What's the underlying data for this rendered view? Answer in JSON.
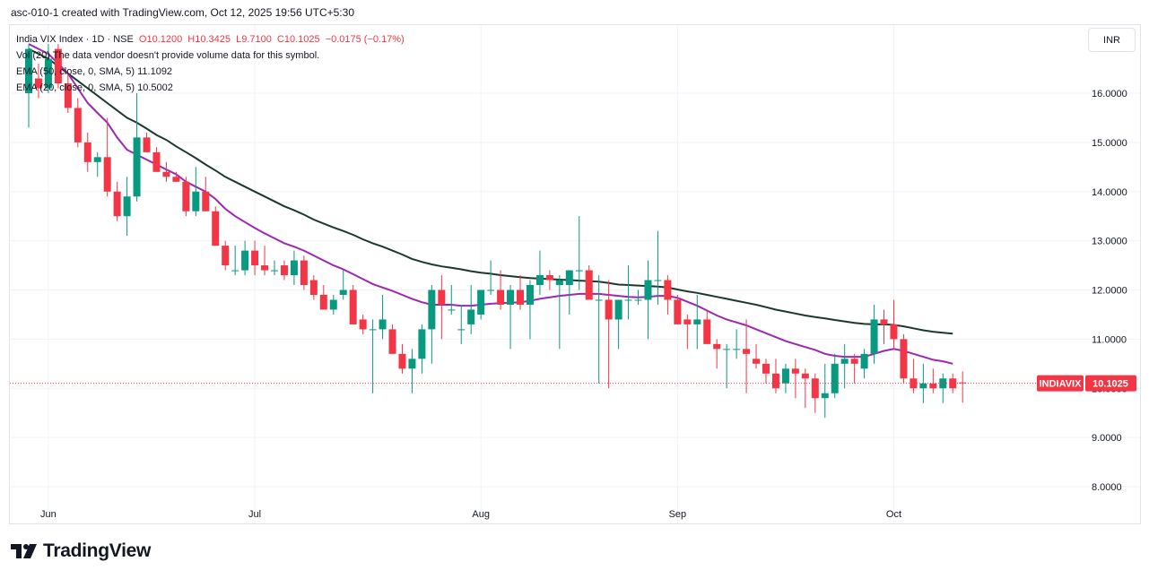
{
  "header": {
    "title": "asc-010-1 created with TradingView.com, Oct 12, 2025 19:56 UTC+5:30"
  },
  "legend": {
    "symbol": "India VIX Index · 1D · NSE",
    "open": "O10.1200",
    "high": "H10.3425",
    "low": "L9.7100",
    "close": "C10.1025",
    "change": "−0.0175 (−0.17%)",
    "vol": "Vol (20) The data vendor doesn't provide volume data for this symbol.",
    "ema50": "EMA (50, close, 0, SMA, 5)  11.1092",
    "ema20": "EMA (20, close, 0, SMA, 5)  10.5002"
  },
  "currency": "INR",
  "brand": {
    "name": "TradingView"
  },
  "colors": {
    "up": "#089981",
    "down": "#f23645",
    "ema50": "#1b3a2c",
    "ema20": "#9c27b0",
    "tag": "#f23645"
  },
  "chart_data": {
    "type": "candlestick",
    "y_ticks": [
      "16.0000",
      "15.0000",
      "14.0000",
      "13.0000",
      "12.0000",
      "11.0000",
      "10.0000",
      "9.0000",
      "8.0000"
    ],
    "ylim": [
      7.5,
      16.5
    ],
    "x_labels": [
      {
        "label": "Jun",
        "index": 2
      },
      {
        "label": "Jul",
        "index": 23
      },
      {
        "label": "Aug",
        "index": 46
      },
      {
        "label": "Sep",
        "index": 66
      },
      {
        "label": "Oct",
        "index": 88
      }
    ],
    "last_price": {
      "symbol": "INDIAVIX",
      "value": "10.1025"
    },
    "candles": [
      {
        "o": 16.0,
        "h": 17.0,
        "l": 15.3,
        "c": 16.9
      },
      {
        "o": 16.3,
        "h": 16.6,
        "l": 15.9,
        "c": 16.1
      },
      {
        "o": 16.1,
        "h": 17.0,
        "l": 16.0,
        "c": 16.7
      },
      {
        "o": 16.9,
        "h": 17.0,
        "l": 16.1,
        "c": 16.2
      },
      {
        "o": 16.2,
        "h": 16.4,
        "l": 15.6,
        "c": 15.7
      },
      {
        "o": 15.7,
        "h": 15.9,
        "l": 14.9,
        "c": 15.0
      },
      {
        "o": 15.0,
        "h": 15.2,
        "l": 14.4,
        "c": 14.6
      },
      {
        "o": 14.6,
        "h": 14.8,
        "l": 14.3,
        "c": 14.7
      },
      {
        "o": 14.7,
        "h": 15.5,
        "l": 13.9,
        "c": 14.0
      },
      {
        "o": 14.0,
        "h": 14.2,
        "l": 13.4,
        "c": 13.5
      },
      {
        "o": 13.5,
        "h": 14.3,
        "l": 13.1,
        "c": 13.9
      },
      {
        "o": 13.9,
        "h": 16.0,
        "l": 13.8,
        "c": 15.1
      },
      {
        "o": 15.1,
        "h": 15.2,
        "l": 14.8,
        "c": 14.8
      },
      {
        "o": 14.8,
        "h": 14.9,
        "l": 14.4,
        "c": 14.4
      },
      {
        "o": 14.4,
        "h": 14.6,
        "l": 14.2,
        "c": 14.3
      },
      {
        "o": 14.3,
        "h": 14.4,
        "l": 14.2,
        "c": 14.2
      },
      {
        "o": 14.2,
        "h": 14.3,
        "l": 13.5,
        "c": 13.6
      },
      {
        "o": 13.6,
        "h": 14.5,
        "l": 13.5,
        "c": 14.0
      },
      {
        "o": 14.0,
        "h": 14.3,
        "l": 13.6,
        "c": 13.6
      },
      {
        "o": 13.6,
        "h": 13.7,
        "l": 12.9,
        "c": 12.9
      },
      {
        "o": 12.9,
        "h": 13.0,
        "l": 12.4,
        "c": 12.5
      },
      {
        "o": 12.4,
        "h": 12.9,
        "l": 12.3,
        "c": 12.4
      },
      {
        "o": 12.4,
        "h": 13.0,
        "l": 12.3,
        "c": 12.8
      },
      {
        "o": 12.8,
        "h": 13.0,
        "l": 12.3,
        "c": 12.5
      },
      {
        "o": 12.5,
        "h": 12.9,
        "l": 12.3,
        "c": 12.4
      },
      {
        "o": 12.4,
        "h": 12.6,
        "l": 12.3,
        "c": 12.4
      },
      {
        "o": 12.5,
        "h": 12.6,
        "l": 12.2,
        "c": 12.3
      },
      {
        "o": 12.3,
        "h": 12.8,
        "l": 12.1,
        "c": 12.6
      },
      {
        "o": 12.6,
        "h": 12.7,
        "l": 12.0,
        "c": 12.1
      },
      {
        "o": 12.2,
        "h": 12.3,
        "l": 11.8,
        "c": 11.9
      },
      {
        "o": 11.9,
        "h": 12.1,
        "l": 11.6,
        "c": 11.6
      },
      {
        "o": 11.6,
        "h": 11.9,
        "l": 11.5,
        "c": 11.8
      },
      {
        "o": 11.9,
        "h": 12.4,
        "l": 11.8,
        "c": 12.0
      },
      {
        "o": 12.0,
        "h": 12.1,
        "l": 11.3,
        "c": 11.3
      },
      {
        "o": 11.4,
        "h": 11.5,
        "l": 11.1,
        "c": 11.2
      },
      {
        "o": 11.2,
        "h": 11.4,
        "l": 9.9,
        "c": 11.2
      },
      {
        "o": 11.2,
        "h": 11.9,
        "l": 11.0,
        "c": 11.4
      },
      {
        "o": 11.2,
        "h": 11.3,
        "l": 10.7,
        "c": 10.7
      },
      {
        "o": 10.7,
        "h": 10.9,
        "l": 10.3,
        "c": 10.4
      },
      {
        "o": 10.4,
        "h": 10.8,
        "l": 9.9,
        "c": 10.6
      },
      {
        "o": 10.6,
        "h": 11.3,
        "l": 10.3,
        "c": 11.2
      },
      {
        "o": 11.2,
        "h": 12.1,
        "l": 10.5,
        "c": 12.0
      },
      {
        "o": 12.0,
        "h": 12.3,
        "l": 11.0,
        "c": 11.7
      },
      {
        "o": 11.6,
        "h": 12.1,
        "l": 11.5,
        "c": 11.6
      },
      {
        "o": 11.2,
        "h": 11.7,
        "l": 10.9,
        "c": 11.2
      },
      {
        "o": 11.3,
        "h": 12.1,
        "l": 11.1,
        "c": 11.6
      },
      {
        "o": 11.5,
        "h": 12.0,
        "l": 11.4,
        "c": 12.0
      },
      {
        "o": 12.0,
        "h": 12.6,
        "l": 11.9,
        "c": 12.0
      },
      {
        "o": 12.0,
        "h": 12.4,
        "l": 11.6,
        "c": 11.7
      },
      {
        "o": 11.7,
        "h": 12.1,
        "l": 10.8,
        "c": 12.0
      },
      {
        "o": 12.0,
        "h": 12.3,
        "l": 11.6,
        "c": 11.7
      },
      {
        "o": 11.7,
        "h": 12.2,
        "l": 11.0,
        "c": 12.1
      },
      {
        "o": 12.1,
        "h": 12.8,
        "l": 11.9,
        "c": 12.3
      },
      {
        "o": 12.3,
        "h": 12.4,
        "l": 12.0,
        "c": 12.2
      },
      {
        "o": 12.1,
        "h": 12.3,
        "l": 10.8,
        "c": 12.2
      },
      {
        "o": 12.1,
        "h": 12.4,
        "l": 11.5,
        "c": 12.4
      },
      {
        "o": 12.4,
        "h": 13.5,
        "l": 12.0,
        "c": 12.4
      },
      {
        "o": 12.4,
        "h": 12.5,
        "l": 11.8,
        "c": 11.8
      },
      {
        "o": 11.8,
        "h": 12.3,
        "l": 10.1,
        "c": 11.8
      },
      {
        "o": 11.8,
        "h": 12.2,
        "l": 10.0,
        "c": 11.4
      },
      {
        "o": 11.4,
        "h": 11.8,
        "l": 10.8,
        "c": 11.8
      },
      {
        "o": 11.8,
        "h": 12.5,
        "l": 11.4,
        "c": 11.8
      },
      {
        "o": 11.8,
        "h": 12.0,
        "l": 11.7,
        "c": 11.8
      },
      {
        "o": 11.8,
        "h": 12.6,
        "l": 11.0,
        "c": 12.2
      },
      {
        "o": 12.2,
        "h": 13.2,
        "l": 11.7,
        "c": 12.2
      },
      {
        "o": 12.2,
        "h": 12.3,
        "l": 11.5,
        "c": 11.8
      },
      {
        "o": 11.8,
        "h": 11.9,
        "l": 11.3,
        "c": 11.3
      },
      {
        "o": 11.4,
        "h": 11.5,
        "l": 10.8,
        "c": 11.3
      },
      {
        "o": 11.3,
        "h": 11.9,
        "l": 10.8,
        "c": 11.4
      },
      {
        "o": 11.4,
        "h": 11.6,
        "l": 10.9,
        "c": 10.9
      },
      {
        "o": 10.9,
        "h": 11.0,
        "l": 10.4,
        "c": 10.8
      },
      {
        "o": 10.8,
        "h": 10.9,
        "l": 10.0,
        "c": 10.8
      },
      {
        "o": 10.8,
        "h": 11.2,
        "l": 10.6,
        "c": 10.8
      },
      {
        "o": 10.8,
        "h": 11.4,
        "l": 9.9,
        "c": 10.7
      },
      {
        "o": 10.6,
        "h": 10.9,
        "l": 10.4,
        "c": 10.5
      },
      {
        "o": 10.5,
        "h": 10.6,
        "l": 10.1,
        "c": 10.3
      },
      {
        "o": 10.3,
        "h": 10.6,
        "l": 9.9,
        "c": 10.0
      },
      {
        "o": 10.1,
        "h": 10.5,
        "l": 9.9,
        "c": 10.4
      },
      {
        "o": 10.4,
        "h": 10.6,
        "l": 9.8,
        "c": 10.3
      },
      {
        "o": 10.3,
        "h": 10.4,
        "l": 9.6,
        "c": 10.2
      },
      {
        "o": 10.2,
        "h": 10.3,
        "l": 9.5,
        "c": 9.8
      },
      {
        "o": 9.8,
        "h": 10.5,
        "l": 9.4,
        "c": 9.9
      },
      {
        "o": 9.9,
        "h": 10.7,
        "l": 9.8,
        "c": 10.5
      },
      {
        "o": 10.5,
        "h": 10.9,
        "l": 10.0,
        "c": 10.6
      },
      {
        "o": 10.6,
        "h": 10.7,
        "l": 10.1,
        "c": 10.5
      },
      {
        "o": 10.4,
        "h": 10.8,
        "l": 10.2,
        "c": 10.7
      },
      {
        "o": 10.7,
        "h": 11.7,
        "l": 10.5,
        "c": 11.4
      },
      {
        "o": 11.4,
        "h": 11.6,
        "l": 10.9,
        "c": 11.3
      },
      {
        "o": 11.3,
        "h": 11.8,
        "l": 10.8,
        "c": 11.0
      },
      {
        "o": 11.0,
        "h": 11.1,
        "l": 10.1,
        "c": 10.2
      },
      {
        "o": 10.2,
        "h": 10.6,
        "l": 9.9,
        "c": 10.0
      },
      {
        "o": 10.0,
        "h": 10.5,
        "l": 9.7,
        "c": 10.1
      },
      {
        "o": 10.1,
        "h": 10.4,
        "l": 9.9,
        "c": 10.0
      },
      {
        "o": 10.0,
        "h": 10.3,
        "l": 9.7,
        "c": 10.2
      },
      {
        "o": 10.2,
        "h": 10.3,
        "l": 9.9,
        "c": 10.0
      },
      {
        "o": 10.12,
        "h": 10.3425,
        "l": 9.71,
        "c": 10.1025
      }
    ],
    "ema50": [
      16.9,
      16.8,
      16.7,
      16.55,
      16.4,
      16.25,
      16.1,
      15.95,
      15.8,
      15.65,
      15.5,
      15.4,
      15.28,
      15.15,
      15.05,
      14.92,
      14.8,
      14.68,
      14.55,
      14.43,
      14.3,
      14.2,
      14.1,
      14.0,
      13.9,
      13.8,
      13.7,
      13.62,
      13.53,
      13.43,
      13.35,
      13.27,
      13.2,
      13.12,
      13.03,
      12.95,
      12.88,
      12.8,
      12.72,
      12.63,
      12.57,
      12.52,
      12.48,
      12.45,
      12.42,
      12.38,
      12.35,
      12.33,
      12.3,
      12.28,
      12.26,
      12.24,
      12.23,
      12.22,
      12.21,
      12.2,
      12.19,
      12.18,
      12.17,
      12.14,
      12.11,
      12.1,
      12.09,
      12.08,
      12.07,
      12.05,
      12.01,
      11.97,
      11.94,
      11.9,
      11.86,
      11.82,
      11.78,
      11.74,
      11.7,
      11.65,
      11.6,
      11.56,
      11.52,
      11.48,
      11.45,
      11.42,
      11.39,
      11.36,
      11.33,
      11.31,
      11.3,
      11.3,
      11.29,
      11.26,
      11.22,
      11.18,
      11.15,
      11.13,
      11.11
    ],
    "ema20": [
      17.0,
      16.9,
      16.8,
      16.6,
      16.4,
      16.1,
      15.8,
      15.6,
      15.4,
      15.1,
      14.85,
      14.75,
      14.65,
      14.55,
      14.45,
      14.35,
      14.2,
      14.1,
      14.0,
      13.85,
      13.65,
      13.5,
      13.38,
      13.26,
      13.15,
      13.05,
      12.95,
      12.88,
      12.8,
      12.7,
      12.6,
      12.5,
      12.42,
      12.32,
      12.22,
      12.12,
      12.05,
      11.98,
      11.9,
      11.82,
      11.75,
      11.7,
      11.7,
      11.7,
      11.68,
      11.68,
      11.7,
      11.72,
      11.73,
      11.74,
      11.75,
      11.78,
      11.82,
      11.85,
      11.88,
      11.9,
      11.92,
      11.92,
      11.92,
      11.9,
      11.88,
      11.86,
      11.85,
      11.86,
      11.88,
      11.88,
      11.84,
      11.76,
      11.68,
      11.58,
      11.48,
      11.4,
      11.34,
      11.28,
      11.2,
      11.12,
      11.04,
      10.96,
      10.9,
      10.84,
      10.78,
      10.7,
      10.66,
      10.64,
      10.64,
      10.64,
      10.7,
      10.76,
      10.8,
      10.76,
      10.7,
      10.64,
      10.58,
      10.55,
      10.5
    ]
  }
}
